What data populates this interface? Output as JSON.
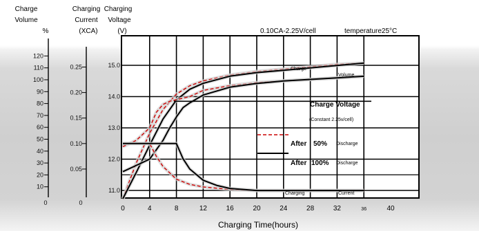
{
  "header": {
    "col1": [
      "Charge",
      "Volume",
      "%"
    ],
    "col2": [
      "Charging",
      "Current",
      "(XCA)"
    ],
    "col3": [
      "Charging",
      "Voltage",
      "(V)"
    ],
    "condition": "0.10CA-2.25V/cell",
    "temperature": "temperature25°C"
  },
  "chart_data": {
    "type": "line",
    "xlabel": "Charging Time(hours)",
    "x_ticks": [
      "0",
      "4",
      "8",
      "12",
      "16",
      "20",
      "24",
      "28",
      "32",
      "36",
      "40"
    ],
    "xlim": [
      0,
      40
    ],
    "grid": true,
    "axes": {
      "charge_volume": {
        "label": "Charge Volume %",
        "ticks": [
          "0",
          "10",
          "20",
          "30",
          "40",
          "50",
          "60",
          "70",
          "80",
          "90",
          "100",
          "110",
          "120"
        ],
        "range": [
          0,
          125
        ]
      },
      "current": {
        "label": "Charging Current (XCA)",
        "ticks": [
          "0",
          "0.05",
          "0.10",
          "0.15",
          "0.20",
          "0.25"
        ],
        "range": [
          0,
          0.26
        ]
      },
      "voltage": {
        "label": "Charging Voltage (V)",
        "ticks": [
          "11.0",
          "12.0",
          "13.0",
          "14.0",
          "15.0"
        ],
        "range": [
          10.3,
          15.2
        ]
      }
    },
    "legend": [
      {
        "label": "After",
        "value": "50%",
        "note": "Discharge",
        "style": "dashed",
        "color": "#cc0000"
      },
      {
        "label": "After",
        "value": "100%",
        "note": "Discharge",
        "style": "solid",
        "color": "#000000"
      }
    ],
    "annotations": {
      "charge_volume": [
        "Charge",
        "Volume"
      ],
      "voltage": [
        "Charge Voltage",
        "(Constant 2.25v/cell)"
      ],
      "current": [
        "Charging",
        "Current"
      ]
    },
    "series": [
      {
        "name": "Charge Volume (after 50%)",
        "axis": "charge_volume",
        "style": "dashed",
        "color": "#cc0000",
        "x": [
          0,
          2,
          4,
          6,
          8,
          10,
          12,
          16,
          20,
          24,
          28,
          32,
          36
        ],
        "y": [
          0,
          30,
          55,
          75,
          88,
          95,
          99,
          104,
          107,
          109,
          111,
          113,
          114
        ]
      },
      {
        "name": "Charge Volume (after 100%)",
        "axis": "charge_volume",
        "style": "solid",
        "color": "#000000",
        "x": [
          0,
          2,
          4,
          6,
          8,
          10,
          12,
          16,
          20,
          24,
          28,
          32,
          36
        ],
        "y": [
          0,
          22,
          45,
          67,
          83,
          92,
          97,
          103,
          106,
          108,
          110,
          112,
          114
        ]
      },
      {
        "name": "Charge Voltage (after 50%)",
        "axis": "voltage",
        "style": "dashed",
        "color": "#cc0000",
        "x": [
          0,
          1,
          2,
          3,
          4,
          5,
          6,
          7,
          8,
          10,
          12,
          16,
          20,
          24,
          28,
          32,
          36
        ],
        "y": [
          12.4,
          12.5,
          12.6,
          12.8,
          13.0,
          13.5,
          13.75,
          13.85,
          13.9,
          14.0,
          14.2,
          14.35,
          14.45,
          14.5,
          14.55,
          14.6,
          14.65
        ]
      },
      {
        "name": "Charge Voltage (after 100%)",
        "axis": "voltage",
        "style": "solid",
        "color": "#000000",
        "x": [
          0,
          2,
          4,
          6,
          7,
          8,
          9,
          10,
          12,
          16,
          20,
          24,
          28,
          32,
          36
        ],
        "y": [
          11.6,
          11.8,
          12.0,
          12.6,
          13.0,
          13.35,
          13.65,
          13.8,
          14.05,
          14.3,
          14.42,
          14.5,
          14.55,
          14.6,
          14.65
        ]
      },
      {
        "name": "Charging Current (after 50%)",
        "axis": "current",
        "style": "dashed",
        "color": "#cc0000",
        "x": [
          0,
          1,
          2,
          3,
          4,
          5,
          6,
          8,
          10,
          12,
          16,
          20,
          24,
          28,
          32,
          36
        ],
        "y": [
          0.1,
          0.1,
          0.1,
          0.1,
          0.1,
          0.075,
          0.055,
          0.03,
          0.02,
          0.015,
          0.01,
          0.008,
          0.008,
          0.008,
          0.008,
          0.008
        ]
      },
      {
        "name": "Charging Current (after 100%)",
        "axis": "current",
        "style": "solid",
        "color": "#000000",
        "x": [
          0,
          4,
          6,
          7,
          8,
          8.5,
          9,
          10,
          12,
          14,
          16,
          20,
          24,
          28,
          32,
          36
        ],
        "y": [
          0.1,
          0.1,
          0.1,
          0.1,
          0.1,
          0.085,
          0.07,
          0.05,
          0.028,
          0.018,
          0.012,
          0.008,
          0.008,
          0.008,
          0.008,
          0.008
        ]
      }
    ]
  }
}
